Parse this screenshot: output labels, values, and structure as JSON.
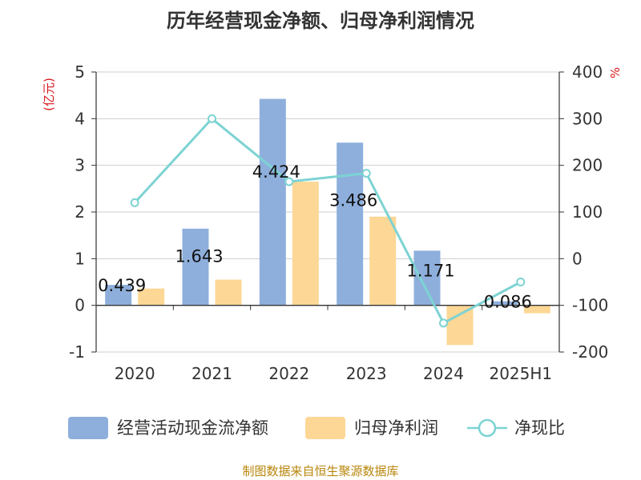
{
  "chart_data": {
    "type": "bar",
    "title": "历年经营现金净额、归母净利润情况",
    "left_axis_label": "(亿元)",
    "right_axis_label": "%",
    "categories": [
      "2020",
      "2021",
      "2022",
      "2023",
      "2024",
      "2025H1"
    ],
    "left_ylim": [
      -1,
      5
    ],
    "left_ticks": [
      "5",
      "4",
      "3",
      "2",
      "1",
      "0",
      "-1"
    ],
    "right_ylim": [
      -200,
      400
    ],
    "right_ticks": [
      "400",
      "300",
      "200",
      "100",
      "0",
      "-100",
      "-200"
    ],
    "series": [
      {
        "name": "经营活动现金流净额",
        "type": "bar",
        "axis": "left",
        "color": "#8eafdc",
        "values": [
          0.439,
          1.643,
          4.424,
          3.486,
          1.171,
          0.086
        ],
        "labels": [
          "0.439",
          "1.643",
          "4.424",
          "3.486",
          "1.171",
          "0.086"
        ]
      },
      {
        "name": "归母净利润",
        "type": "bar",
        "axis": "left",
        "color": "#fdd795",
        "values": [
          0.36,
          0.55,
          2.65,
          1.9,
          -0.85,
          -0.17
        ]
      },
      {
        "name": "净现比",
        "type": "line",
        "axis": "right",
        "color": "#7dd3d3",
        "values": [
          120,
          300,
          165,
          183,
          -138,
          -50
        ]
      }
    ],
    "grid": true,
    "legend_position": "bottom"
  },
  "source_text": "制图数据来自恒生聚源数据库"
}
